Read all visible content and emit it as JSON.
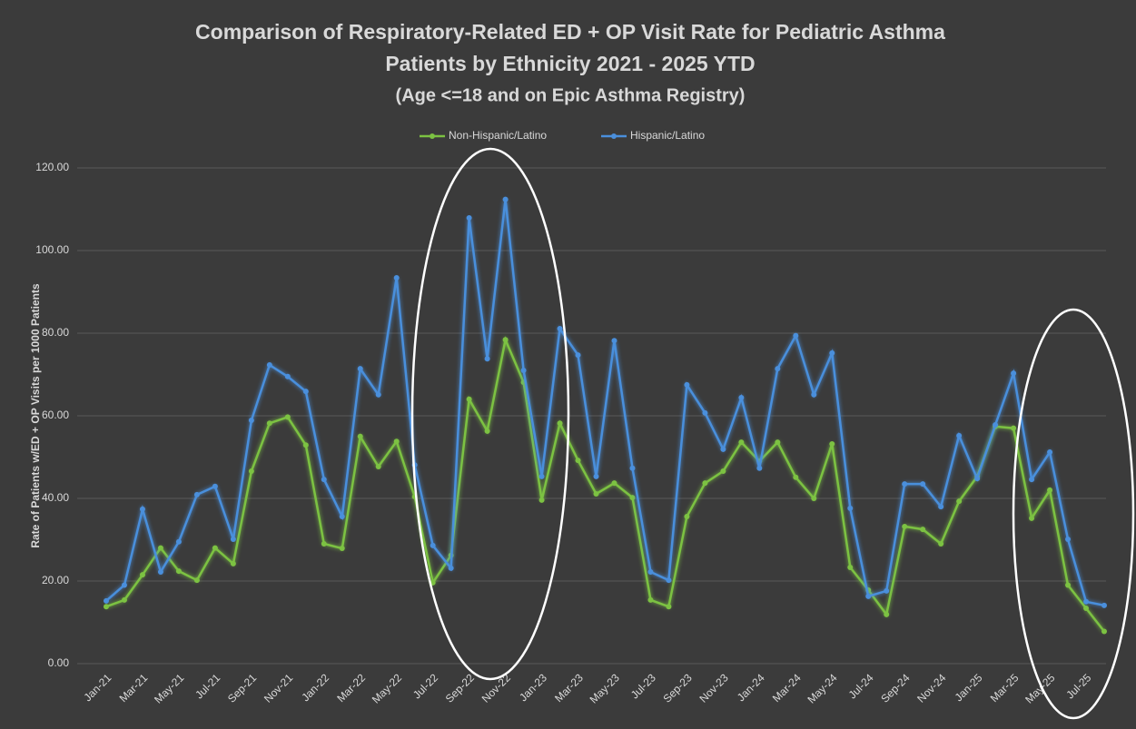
{
  "chart_data": {
    "type": "line",
    "title": [
      "Comparison of Respiratory-Related ED + OP Visit Rate for Pediatric Asthma",
      "Patients by Ethnicity 2021 - 2025 YTD"
    ],
    "subtitle": "(Age <=18 and on Epic Asthma Registry)",
    "y_label": "Rate of Patients w/ED + OP Visits per 1000 Patients",
    "categories": [
      "Jan-21",
      null,
      "Mar-21",
      null,
      "May-21",
      null,
      "Jul-21",
      null,
      "Sep-21",
      null,
      "Nov-21",
      null,
      "Jan-22",
      null,
      "Mar-22",
      null,
      "May-22",
      null,
      "Jul-22",
      null,
      "Sep-22",
      null,
      "Nov-22",
      null,
      "Jan-23",
      null,
      "Mar-23",
      null,
      "May-23",
      null,
      "Jul-23",
      null,
      "Sep-23",
      null,
      "Nov-23",
      null,
      "Jan-24",
      null,
      "Mar-24",
      null,
      "May-24",
      null,
      "Jul-24",
      null,
      "Sep-24",
      null,
      "Nov-24",
      null,
      "Jan-25",
      null,
      "Mar-25",
      null,
      "May-25",
      null,
      "Jul-25",
      null
    ],
    "series": [
      {
        "name": "Non-Hispanic/Latino",
        "color": "#7cc242",
        "values": [
          13.8,
          15.4,
          21.5,
          28.0,
          22.4,
          20.2,
          28.0,
          24.2,
          46.6,
          58.2,
          59.7,
          52.9,
          29.0,
          27.9,
          55.0,
          47.7,
          53.8,
          40.4,
          19.6,
          26.2,
          64.0,
          56.3,
          78.4,
          68.1,
          39.6,
          58.2,
          49.2,
          41.1,
          43.7,
          40.2,
          15.4,
          13.8,
          35.6,
          43.7,
          46.6,
          53.6,
          49.0,
          53.6,
          45.1,
          40.0,
          53.2,
          23.3,
          17.8,
          11.9,
          33.2,
          32.5,
          29.0,
          39.3,
          45.3,
          57.4,
          57.0,
          35.2,
          42.0,
          19.0,
          13.4,
          7.8
        ]
      },
      {
        "name": "Hispanic/Latino",
        "color": "#4a8fdc",
        "values": [
          15.2,
          19.0,
          37.4,
          22.2,
          29.5,
          40.9,
          42.9,
          30.1,
          58.9,
          72.3,
          69.5,
          65.9,
          44.6,
          35.6,
          71.4,
          65.1,
          93.4,
          48.1,
          28.6,
          23.1,
          107.9,
          73.8,
          112.4,
          71.0,
          45.3,
          81.1,
          74.7,
          45.3,
          78.2,
          47.3,
          22.2,
          20.2,
          67.5,
          60.7,
          51.9,
          64.4,
          47.3,
          71.4,
          79.4,
          65.1,
          75.2,
          37.6,
          16.3,
          17.6,
          43.5,
          43.5,
          38.0,
          55.2,
          44.8,
          57.8,
          70.3,
          44.6,
          51.2,
          30.1,
          15.0,
          14.1
        ]
      }
    ],
    "ylim": [
      0,
      120
    ],
    "yticks": [
      {
        "value": 0,
        "label": "0.00"
      },
      {
        "value": 20,
        "label": "20.00"
      },
      {
        "value": 40,
        "label": "40.00"
      },
      {
        "value": 60,
        "label": "60.00"
      },
      {
        "value": 80,
        "label": "80.00"
      },
      {
        "value": 100,
        "label": "100.00"
      },
      {
        "value": 120,
        "label": "120.00"
      }
    ],
    "grid": true,
    "legend": "top"
  }
}
